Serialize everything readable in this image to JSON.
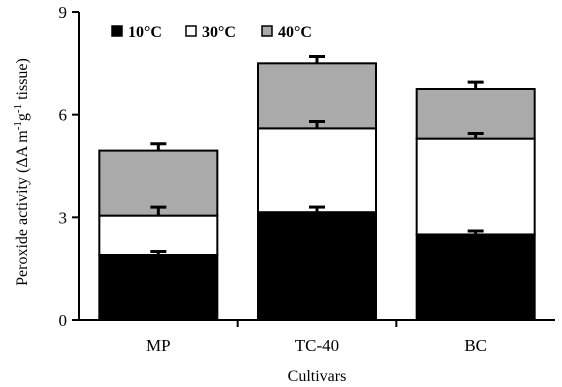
{
  "chart_data": {
    "type": "bar",
    "stacked": true,
    "categories": [
      "MP",
      "TC-40",
      "BC"
    ],
    "series": [
      {
        "name": "10°C",
        "values": [
          1.9,
          3.15,
          2.5
        ],
        "errors": [
          0.1,
          0.15,
          0.1
        ],
        "color": "#000000"
      },
      {
        "name": "30°C",
        "values": [
          1.15,
          2.45,
          2.8
        ],
        "errors": [
          0.25,
          0.2,
          0.15
        ],
        "color": "#ffffff"
      },
      {
        "name": "40°C",
        "values": [
          1.9,
          1.9,
          1.45
        ],
        "errors": [
          0.2,
          0.2,
          0.2
        ],
        "color": "#aaaaaa"
      }
    ],
    "xlabel": "Cultivars",
    "ylabel_parts": [
      "Peroxide activity (ΔA m",
      "-1",
      "g",
      "-1",
      " tissue)"
    ],
    "yticks": [
      "0",
      "3",
      "6",
      "9"
    ],
    "ylim": [
      0,
      9
    ],
    "legend_placement": "top-left",
    "grid": false
  }
}
